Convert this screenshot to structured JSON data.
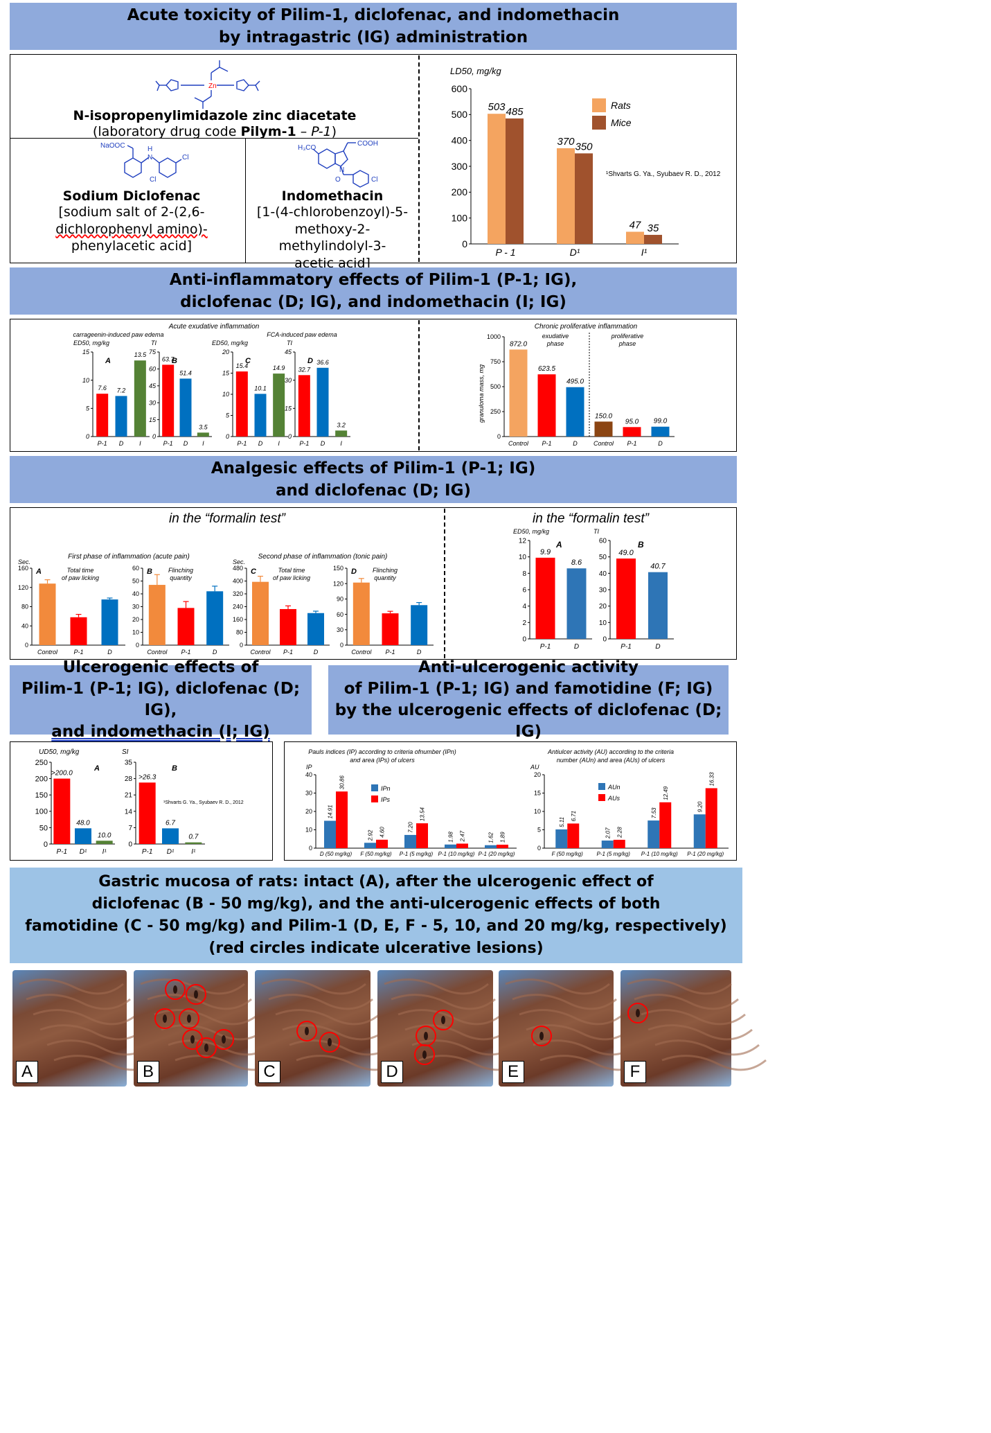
{
  "banners": {
    "b1": [
      "Acute toxicity of Pilim-1, diclofenac, and indomethacin",
      "by intragastric (IG) administration"
    ],
    "b2": [
      "Anti-inflammatory effects of Pilim-1 (P-1; IG),",
      "diclofenac (D; IG), and indomethacin (I; IG)"
    ],
    "b3": [
      "Analgesic effects of Pilim-1 (P-1; IG)",
      "and diclofenac (D; IG)"
    ],
    "b4": [
      "Ulcerogenic effects of",
      "Pilim-1 (P-1; IG), diclofenac (D; IG),",
      "and indomethacin (I; IG)"
    ],
    "b5": [
      "Anti-ulcerogenic activity",
      "of Pilim-1 (P-1; IG) and famotidine (F; IG)",
      "by the ulcerogenic effects of diclofenac (D; IG)"
    ],
    "b6": [
      "Gastric mucosa of rats: intact (A), after the ulcerogenic effect of",
      "diclofenac (B - 50 mg/kg), and the anti-ulcerogenic effects of both",
      "famotidine (C - 50 mg/kg) and Pilim-1 (D, E, F - 5, 10, and 20 mg/kg, respectively)",
      "(red circles indicate ulcerative lesions)"
    ]
  },
  "compounds": {
    "pilym": {
      "name": "N-isopropenylimidazole zinc diacetate",
      "desc_pre": "(laboratory drug code ",
      "desc_bold": "Pilym-1",
      "desc_mid": " – ",
      "desc_ital": "P-1",
      "desc_post": ")",
      "zn": "Zn"
    },
    "diclofenac": {
      "name": "Sodium Diclofenac",
      "desc": [
        "[sodium salt of 2-(2,6-",
        "dichlorophenyl amino)-",
        "phenylacetic acid]"
      ],
      "labels": {
        "naooc": "NaOOC",
        "h": "H",
        "n": "N",
        "cl1": "Cl",
        "cl2": "Cl"
      }
    },
    "indomethacin": {
      "name": "Indomethacin",
      "desc": [
        "[1-(4-chlorobenzoyl)-5-",
        "methoxy-2-methylindolyl-3-",
        "acetic acid]"
      ],
      "labels": {
        "cooh": "COOH",
        "h3co": "H₃CO",
        "n": "N",
        "o": "O",
        "cl": "Cl"
      }
    }
  },
  "chart_data": [
    {
      "id": "ld50",
      "type": "bar",
      "ylabel": "LD50, mg/kg",
      "ylim": [
        0,
        600
      ],
      "yticks": [
        0,
        100,
        200,
        300,
        400,
        500,
        600
      ],
      "categories": [
        "P - 1",
        "D¹",
        "I¹"
      ],
      "series": [
        {
          "name": "Rats",
          "values": [
            503,
            370,
            47
          ],
          "color": "#f4a460"
        },
        {
          "name": "Mice",
          "values": [
            485,
            350,
            35
          ],
          "color": "#a0522d"
        }
      ],
      "note": "¹Shvarts G. Ya., Syubaev R. D., 2012"
    },
    {
      "id": "inflA",
      "type": "bar",
      "panel": "A",
      "ylabel": "ED50, mg/kg",
      "ylim": [
        0,
        15
      ],
      "yticks": [
        0,
        5,
        10,
        15
      ],
      "categories": [
        "P-1",
        "D",
        "I"
      ],
      "values": [
        7.6,
        7.2,
        13.5
      ],
      "labels": [
        "7.6",
        "7.2",
        "13.5"
      ]
    },
    {
      "id": "inflB",
      "type": "bar",
      "panel": "B",
      "ylabel": "TI",
      "ylim": [
        0,
        75
      ],
      "yticks": [
        0,
        15,
        30,
        45,
        60,
        75
      ],
      "categories": [
        "P-1",
        "D",
        "I"
      ],
      "values": [
        63.7,
        51.4,
        3.5
      ],
      "labels": [
        "63.7",
        "51.4",
        "3.5"
      ]
    },
    {
      "id": "inflC",
      "type": "bar",
      "panel": "C",
      "ylabel": "ED50, mg/kg",
      "ylim": [
        0,
        20
      ],
      "yticks": [
        0,
        5,
        10,
        15,
        20
      ],
      "categories": [
        "P-1",
        "D",
        "I"
      ],
      "values": [
        15.4,
        10.1,
        14.9
      ],
      "labels": [
        "15.4",
        "10.1",
        "14.9"
      ]
    },
    {
      "id": "inflD",
      "type": "bar",
      "panel": "D",
      "ylabel": "TI",
      "ylim": [
        0,
        45
      ],
      "yticks": [
        0,
        15,
        30,
        45
      ],
      "categories": [
        "P-1",
        "D",
        "I"
      ],
      "values": [
        32.7,
        36.6,
        3.2
      ],
      "labels": [
        "32.7",
        "36.6",
        "3.2"
      ]
    },
    {
      "id": "chronic",
      "type": "bar",
      "title": "Chronic proliferative inflammation",
      "ylabel": "granuloma mass, mg",
      "ylim": [
        0,
        1000
      ],
      "yticks": [
        0,
        250,
        500,
        750,
        1000
      ],
      "groups": [
        "exudative phase",
        "proliferative phase"
      ],
      "categories": [
        "Control",
        "P-1",
        "D",
        "Control",
        "P-1",
        "D"
      ],
      "values": [
        872.0,
        623.5,
        495.0,
        150.0,
        95.0,
        99.0
      ],
      "labels": [
        "872.0",
        "623.5",
        "495.0",
        "150.0",
        "95.0",
        "99.0"
      ]
    },
    {
      "id": "anaA",
      "type": "bar",
      "panel": "A",
      "ylabel": "Sec.",
      "sublabel": "Total time of paw licking",
      "ylim": [
        0,
        160
      ],
      "yticks": [
        0,
        40,
        80,
        120,
        160
      ],
      "categories": [
        "Control",
        "P-1",
        "D"
      ],
      "values": [
        128,
        58,
        95
      ],
      "errors": [
        8,
        6,
        3
      ]
    },
    {
      "id": "anaB",
      "type": "bar",
      "panel": "B",
      "sublabel": "Flinching quantity",
      "ylim": [
        0,
        60
      ],
      "yticks": [
        0,
        10,
        20,
        30,
        40,
        50,
        60
      ],
      "categories": [
        "Control",
        "P-1",
        "D"
      ],
      "values": [
        47,
        29,
        42
      ],
      "errors": [
        8,
        5,
        4
      ]
    },
    {
      "id": "anaC",
      "type": "bar",
      "panel": "C",
      "ylabel": "Sec.",
      "sublabel": "Total time of paw licking",
      "ylim": [
        0,
        480
      ],
      "yticks": [
        0,
        80,
        160,
        240,
        320,
        400,
        480
      ],
      "categories": [
        "Control",
        "P-1",
        "D"
      ],
      "values": [
        395,
        225,
        200
      ],
      "errors": [
        35,
        20,
        12
      ]
    },
    {
      "id": "anaD",
      "type": "bar",
      "panel": "D",
      "sublabel": "Flinching quantity",
      "ylim": [
        0,
        150
      ],
      "yticks": [
        0,
        30,
        60,
        90,
        120,
        150
      ],
      "categories": [
        "Control",
        "P-1",
        "D"
      ],
      "values": [
        122,
        62,
        78
      ],
      "errors": [
        8,
        4,
        5
      ]
    },
    {
      "id": "anaE",
      "type": "bar",
      "panel": "A",
      "ylabel": "ED50, mg/kg",
      "ylim": [
        0,
        12
      ],
      "yticks": [
        0,
        2,
        4,
        6,
        8,
        10,
        12
      ],
      "categories": [
        "P-1",
        "D"
      ],
      "values": [
        9.9,
        8.6
      ],
      "labels": [
        "9.9",
        "8.6"
      ]
    },
    {
      "id": "anaF",
      "type": "bar",
      "panel": "B",
      "ylabel": "TI",
      "ylim": [
        0,
        60
      ],
      "yticks": [
        0,
        10,
        20,
        30,
        40,
        50,
        60
      ],
      "categories": [
        "P-1",
        "D"
      ],
      "values": [
        49.0,
        40.7
      ],
      "labels": [
        "49.0",
        "40.7"
      ]
    },
    {
      "id": "ulcA",
      "type": "bar",
      "panel": "A",
      "ylabel": "UD50, mg/kg",
      "ylim": [
        0,
        250
      ],
      "yticks": [
        0,
        50,
        100,
        150,
        200,
        250
      ],
      "categories": [
        "P-1",
        "D¹",
        "I¹"
      ],
      "values": [
        200,
        48.0,
        10.0
      ],
      "labels": [
        ">200.0",
        "48.0",
        "10.0"
      ]
    },
    {
      "id": "ulcB",
      "type": "bar",
      "panel": "B",
      "ylabel": "SI",
      "ylim": [
        0,
        35
      ],
      "yticks": [
        0,
        7,
        14,
        21,
        28,
        35
      ],
      "categories": [
        "P-1",
        "D¹",
        "I¹"
      ],
      "values": [
        26.3,
        6.7,
        0.7
      ],
      "labels": [
        ">26.3",
        "6.7",
        "0.7"
      ]
    },
    {
      "id": "pauls",
      "type": "bar",
      "ylabel": "IP",
      "ylim": [
        0,
        40
      ],
      "yticks": [
        0,
        10,
        20,
        30,
        40
      ],
      "categories": [
        "D (50 mg/kg)",
        "F (50 mg/kg)",
        "P-1 (5 mg/kg)",
        "P-1 (10 mg/kg)",
        "P-1 (20 mg/kg)"
      ],
      "series": [
        {
          "name": "IPn",
          "values": [
            14.91,
            2.92,
            7.2,
            1.98,
            1.62
          ],
          "color": "#2e75b6"
        },
        {
          "name": "IPs",
          "values": [
            30.86,
            4.6,
            13.54,
            2.47,
            1.89
          ],
          "color": "#ff0000"
        }
      ]
    },
    {
      "id": "au",
      "type": "bar",
      "ylabel": "AU",
      "ylim": [
        0,
        20
      ],
      "yticks": [
        0,
        5,
        10,
        15,
        20
      ],
      "categories": [
        "F (50 mg/kg)",
        "P-1 (5 mg/kg)",
        "P-1 (10 mg/kg)",
        "P-1 (20 mg/kg)"
      ],
      "series": [
        {
          "name": "AUn",
          "values": [
            5.11,
            2.07,
            7.53,
            9.2
          ],
          "color": "#2e75b6"
        },
        {
          "name": "AUs",
          "values": [
            6.71,
            2.28,
            12.49,
            16.33
          ],
          "color": "#ff0000"
        }
      ]
    }
  ],
  "texts": {
    "ld50_ylabel": "LD50, mg/kg",
    "rats": "Rats",
    "mice": "Mice",
    "ref": "¹Shvarts G. Ya., Syubaev R. D., 2012",
    "acute_title": "Acute exudative inflammation",
    "carr": "carrageenin-induced paw edema",
    "fca": "FCA-induced paw edema",
    "ed50": "ED50, mg/kg",
    "ti": "TI",
    "chronic_title": "Chronic proliferative inflammation",
    "exud": [
      "exudative",
      "phase"
    ],
    "prolif": [
      "proliferative",
      "phase"
    ],
    "gran": "granuloma mass, mg",
    "formalin": "in the “formalin test”",
    "phase1": "First phase of inflammation (acute pain)",
    "phase2": "Second phase of inflammation (tonic pain)",
    "sec": "Sec.",
    "paw": [
      "Total time",
      "of paw licking"
    ],
    "flinch": [
      "Flinching",
      "quantity"
    ],
    "ud50": "UD50, mg/kg",
    "si": "SI",
    "pauls_title": [
      "Pauls indices (IP) according to criteria ofnumber (IPn)",
      "and area (IPs) of ulcers"
    ],
    "ip": "IP",
    "au_title": [
      "Antiulcer activity (AU) according to the criteria",
      "number (AUn) and area (AUs) of ulcers"
    ],
    "au": "AU",
    "ipn": "IPn",
    "ips": "IPs",
    "aun": "AUn",
    "aus": "AUs"
  },
  "colors": {
    "banner": "#8faadc",
    "orange": "#f28a3c",
    "red": "#ff0000",
    "blue": "#0070c0",
    "green": "#548235",
    "brown": "#8b4513",
    "lightorange": "#f4a460",
    "darkorange": "#a0522d"
  },
  "photos": {
    "labels": [
      "A",
      "B",
      "C",
      "D",
      "E",
      "F"
    ],
    "lesion_counts": [
      0,
      7,
      2,
      3,
      1,
      1
    ]
  }
}
